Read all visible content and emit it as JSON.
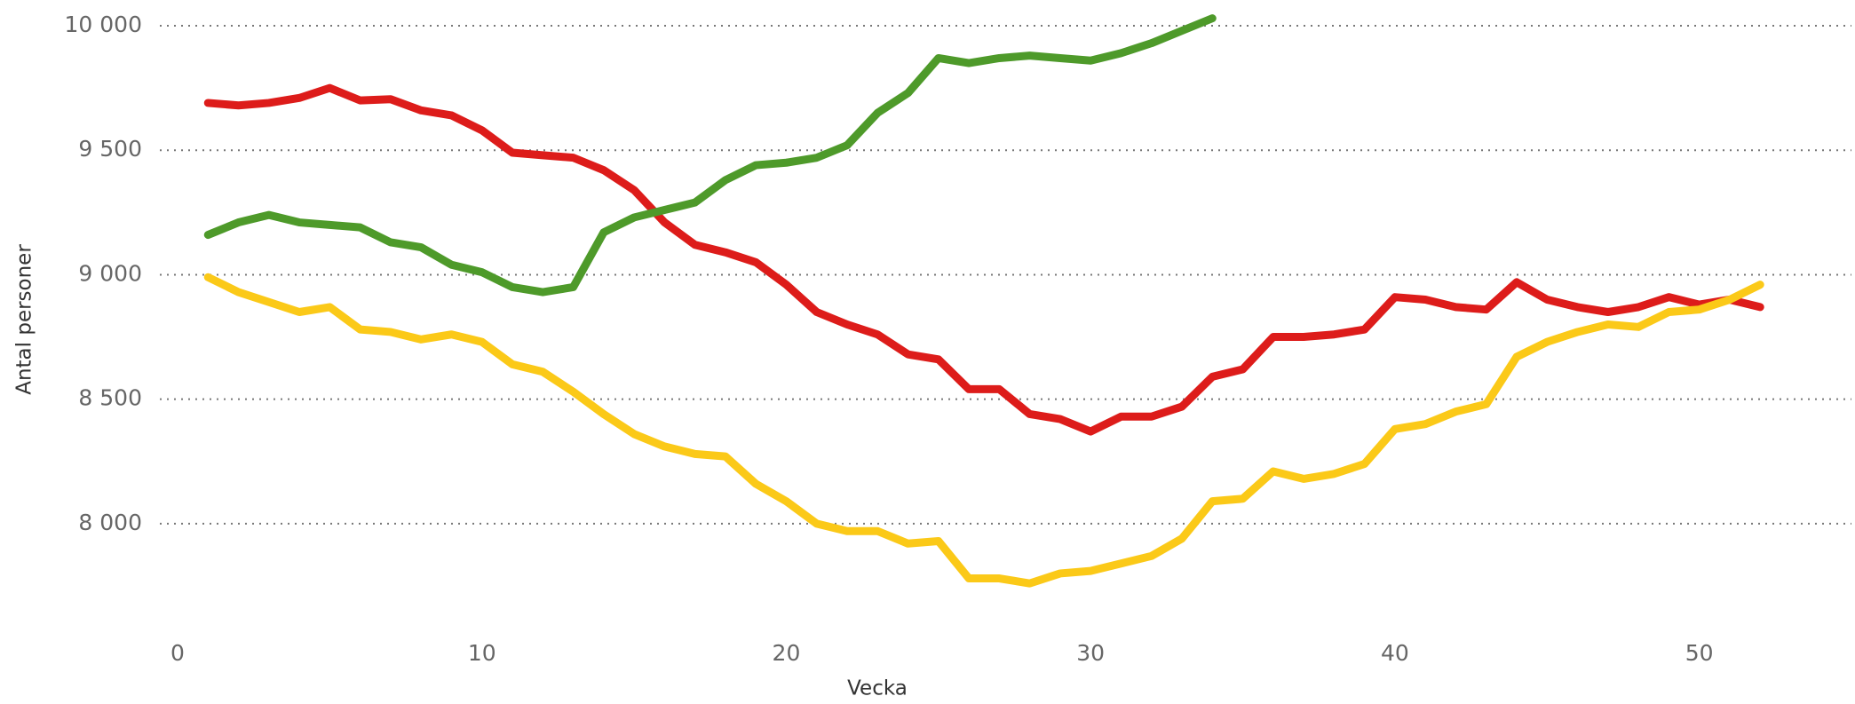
{
  "chart_data": {
    "type": "line",
    "x_label": "Vecka",
    "y_label": "Antal personer",
    "x": [
      1,
      2,
      3,
      4,
      5,
      6,
      7,
      8,
      9,
      10,
      11,
      12,
      13,
      14,
      15,
      16,
      17,
      18,
      19,
      20,
      21,
      22,
      23,
      24,
      25,
      26,
      27,
      28,
      29,
      30,
      31,
      32,
      33,
      34,
      35,
      36,
      37,
      38,
      39,
      40,
      41,
      42,
      43,
      44,
      45,
      46,
      47,
      48,
      49,
      50,
      51,
      52
    ],
    "series": [
      {
        "color": "#dd1c1a",
        "values": [
          9690,
          9680,
          9690,
          9710,
          9750,
          9700,
          9705,
          9660,
          9640,
          9580,
          9490,
          9480,
          9470,
          9420,
          9340,
          9210,
          9120,
          9090,
          9050,
          8960,
          8850,
          8800,
          8760,
          8680,
          8660,
          8540,
          8540,
          8440,
          8420,
          8370,
          8430,
          8430,
          8470,
          8590,
          8620,
          8750,
          8750,
          8760,
          8780,
          8910,
          8900,
          8870,
          8860,
          8970,
          8900,
          8870,
          8850,
          8870,
          8910,
          8880,
          8900,
          8870
        ]
      },
      {
        "color": "#fbc918",
        "values": [
          8990,
          8930,
          8890,
          8850,
          8870,
          8780,
          8770,
          8740,
          8760,
          8730,
          8640,
          8610,
          8530,
          8440,
          8360,
          8310,
          8280,
          8270,
          8160,
          8090,
          8000,
          7970,
          7970,
          7920,
          7930,
          7780,
          7780,
          7760,
          7800,
          7810,
          7840,
          7870,
          7940,
          8090,
          8100,
          8210,
          8180,
          8200,
          8240,
          8380,
          8400,
          8450,
          8480,
          8670,
          8730,
          8770,
          8800,
          8790,
          8850,
          8860,
          8900,
          8960
        ]
      },
      {
        "color": "#4e9a2a",
        "values": [
          9160,
          9210,
          9240,
          9210,
          9200,
          9190,
          9130,
          9110,
          9040,
          9010,
          8950,
          8930,
          8950,
          9170,
          9230,
          9260,
          9290,
          9380,
          9440,
          9450,
          9470,
          9520,
          9650,
          9730,
          9870,
          9850,
          9870,
          9880,
          9870,
          9860,
          9890,
          9930,
          9980,
          10030,
          null,
          null,
          null,
          null,
          null,
          null,
          null,
          null,
          null,
          null,
          null,
          null,
          null,
          null,
          null,
          null,
          null,
          null
        ]
      }
    ],
    "xlim": [
      0,
      55
    ],
    "xticks": [
      0,
      10,
      20,
      30,
      40,
      50
    ],
    "ylim": [
      7650,
      10050
    ],
    "yticks": [
      {
        "value": 8000,
        "label": "8 000"
      },
      {
        "value": 8500,
        "label": "8 500"
      },
      {
        "value": 9000,
        "label": "9 000"
      },
      {
        "value": 9500,
        "label": "9 500"
      },
      {
        "value": 10000,
        "label": "10 000"
      }
    ],
    "grid": true
  }
}
